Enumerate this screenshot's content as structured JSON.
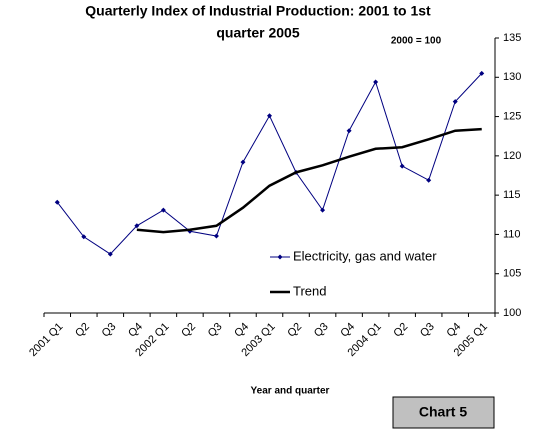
{
  "chart_data": {
    "type": "line",
    "title_lines": [
      "Quarterly Index of Industrial Production: 2001 to 1st",
      "quarter 2005"
    ],
    "annotation": "2000 = 100",
    "x_label": "Year and quarter",
    "chart_label": "Chart 5",
    "categories": [
      "2001 Q1",
      "Q2",
      "Q3",
      "Q4",
      "2002 Q1",
      "Q2",
      "Q3",
      "Q4",
      "2003 Q1",
      "Q2",
      "Q3",
      "Q4",
      "2004 Q1",
      "Q2",
      "Q3",
      "Q4",
      "2005 Q1"
    ],
    "series": [
      {
        "name": "Electricity, gas and water",
        "color": "#000080",
        "values": [
          114.1,
          109.7,
          107.5,
          111.1,
          113.1,
          110.4,
          109.8,
          119.2,
          125.1,
          117.9,
          113.1,
          123.2,
          129.4,
          118.7,
          116.9,
          126.9,
          130.5
        ]
      },
      {
        "name": "Trend",
        "color": "#000000",
        "values": [
          null,
          null,
          null,
          110.6,
          110.3,
          110.6,
          111.1,
          113.4,
          116.2,
          117.9,
          118.8,
          119.9,
          120.9,
          121.1,
          122.1,
          123.2,
          123.4
        ]
      }
    ],
    "ylim": [
      100,
      135
    ],
    "yticks": [
      100,
      105,
      110,
      115,
      120,
      125,
      130,
      135
    ],
    "grid": false
  }
}
